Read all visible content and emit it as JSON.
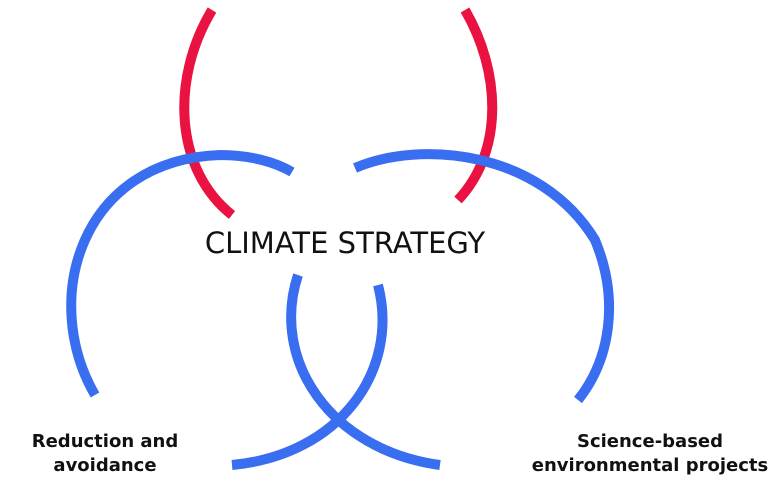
{
  "title": "CLIMATE STRATEGY",
  "labels": [
    {
      "lines": [
        "Reduction and",
        "avoidance"
      ]
    },
    {
      "lines": [
        "Science-based",
        "environmental projects"
      ]
    }
  ]
}
